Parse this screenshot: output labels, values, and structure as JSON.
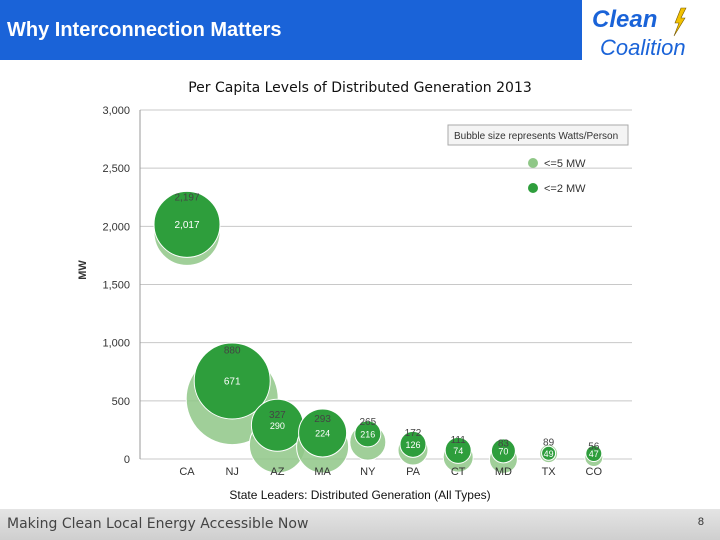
{
  "slide": {
    "title": "Why Interconnection Matters",
    "logo_word1": "Clean",
    "logo_word2": "Coalition",
    "caption": "State Leaders: Distributed Generation (All Types)",
    "footer": "Making Clean Local Energy Accessible Now",
    "page_number": "8"
  },
  "colors": {
    "header_bg": "#1a63d8",
    "logo_blue": "#1a63d8",
    "logo_bolt": "#f2c200",
    "light_green": "#8fc787",
    "dark_green": "#2e9e3c",
    "grid": "#c8c8c8"
  },
  "chart_data": {
    "type": "bubble",
    "title": "Per Capita Levels of Distributed Generation 2013",
    "xlabel": "",
    "ylabel": "MW",
    "ylim": [
      0,
      3000
    ],
    "yticks": [
      0,
      500,
      1000,
      1500,
      2000,
      2500,
      3000
    ],
    "ytick_labels": [
      "0",
      "500",
      "1,000",
      "1,500",
      "2,000",
      "2,500",
      "3,000"
    ],
    "grid": true,
    "categories": [
      "CA",
      "NJ",
      "AZ",
      "MA",
      "NY",
      "PA",
      "CT",
      "MD",
      "TX",
      "CO"
    ],
    "legend": {
      "title": "Bubble size represents Watts/Person",
      "placement": "top-right",
      "entries": [
        "<=5 MW",
        "<=2 MW"
      ]
    },
    "series": [
      {
        "name": "<=5 MW",
        "values": [
          2197,
          880,
          327,
          293,
          265,
          172,
          111,
          83,
          89,
          56
        ],
        "labels": [
          "2,197",
          "880",
          "327",
          "293",
          "265",
          "172",
          "111",
          "83",
          "89",
          "56"
        ]
      },
      {
        "name": "<=2 MW",
        "values": [
          2017,
          671,
          290,
          224,
          216,
          126,
          74,
          70,
          49,
          47
        ],
        "labels": [
          "2,017",
          "671",
          "290",
          "224",
          "216",
          "126",
          "74",
          "70",
          "49",
          "47"
        ]
      }
    ]
  }
}
